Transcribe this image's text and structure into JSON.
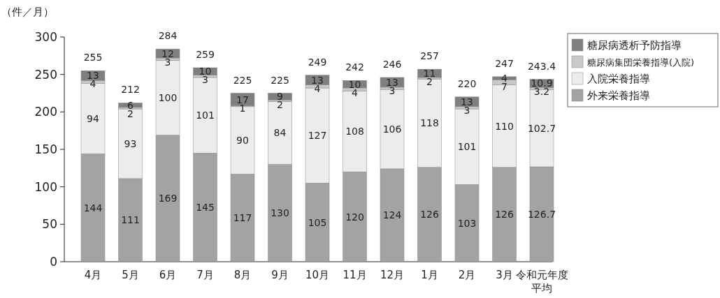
{
  "chart_data": {
    "type": "bar",
    "stacked": true,
    "ylabel": "（件／月）",
    "categories": [
      "4月",
      "5月",
      "6月",
      "7月",
      "8月",
      "9月",
      "10月",
      "11月",
      "12月",
      "1月",
      "2月",
      "3月",
      "令和元年度平均"
    ],
    "series": [
      {
        "name": "外来栄養指導",
        "color": "#a3a3a3",
        "values": [
          144,
          111,
          169,
          145,
          117,
          130,
          105,
          120,
          124,
          126,
          103,
          126,
          126.7
        ]
      },
      {
        "name": "入院栄養指導",
        "color": "#ececec",
        "values": [
          94,
          93,
          100,
          101,
          90,
          84,
          127,
          108,
          106,
          118,
          101,
          110,
          102.7
        ]
      },
      {
        "name": "糖尿病集団栄養指導(入院)",
        "color": "#c9c9c9",
        "values": [
          4,
          2,
          3,
          3,
          1,
          2,
          4,
          4,
          3,
          2,
          3,
          7,
          3.2
        ]
      },
      {
        "name": "糖尿病透析予防指導",
        "color": "#7f7f7f",
        "values": [
          13,
          6,
          12,
          10,
          17,
          9,
          13,
          10,
          13,
          11,
          13,
          4,
          10.9
        ]
      }
    ],
    "totals": [
      "255",
      "212",
      "284",
      "259",
      "225",
      "225",
      "249",
      "242",
      "246",
      "257",
      "220",
      "247",
      "243.4"
    ],
    "ylim": [
      0,
      300
    ],
    "yticks": [
      0,
      50,
      100,
      150,
      200,
      250,
      300
    ],
    "data_labels": true,
    "legend": "top right",
    "grid": false
  }
}
